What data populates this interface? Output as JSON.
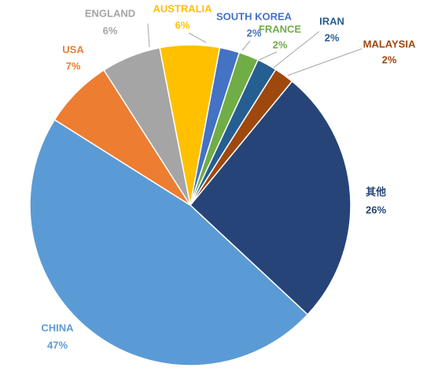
{
  "chart_data": {
    "type": "pie",
    "categories": [
      "其他",
      "CHINA",
      "USA",
      "ENGLAND",
      "AUSTRALIA",
      "SOUTH KOREA",
      "FRANCE",
      "IRAN",
      "MALAYSIA"
    ],
    "values": [
      26,
      47,
      7,
      6,
      6,
      2,
      2,
      2,
      2
    ],
    "value_labels": [
      "26%",
      "47%",
      "7%",
      "6%",
      "6%",
      "2%",
      "2%",
      "2%",
      "2%"
    ],
    "colors": [
      "#264478",
      "#5b9bd5",
      "#ed7d31",
      "#a5a5a5",
      "#ffc000",
      "#4472c4",
      "#70ad47",
      "#255e91",
      "#9e480e"
    ]
  }
}
